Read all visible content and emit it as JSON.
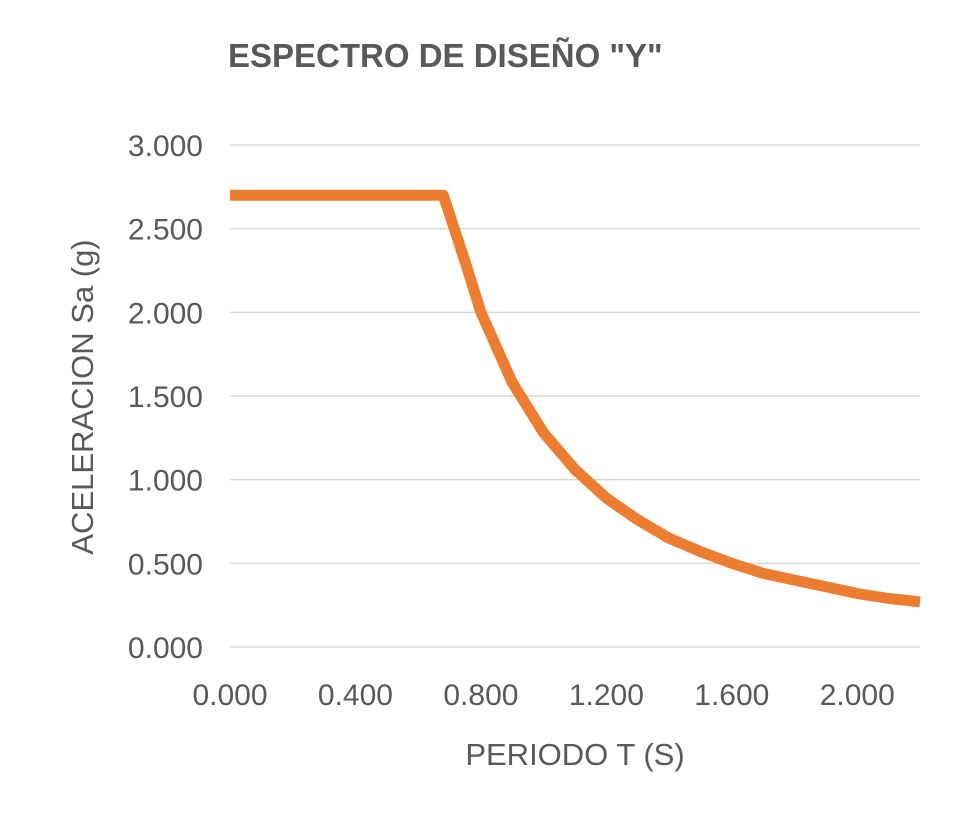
{
  "chart_data": {
    "type": "line",
    "title": "ESPECTRO DE DISEÑO \"Y\"",
    "xlabel": "PERIODO T (S)",
    "ylabel": "ACELERACION Sa (g)",
    "xlim": [
      0,
      2.2
    ],
    "ylim": [
      0,
      3.0
    ],
    "x_ticks": [
      "0.000",
      "0.400",
      "0.800",
      "1.200",
      "1.600",
      "2.000"
    ],
    "x_tick_values": [
      0,
      0.4,
      0.8,
      1.2,
      1.6,
      2.0
    ],
    "y_ticks": [
      "0.000",
      "0.500",
      "1.000",
      "1.500",
      "2.000",
      "2.500",
      "3.000"
    ],
    "y_tick_values": [
      0,
      0.5,
      1.0,
      1.5,
      2.0,
      2.5,
      3.0
    ],
    "grid": true,
    "legend": "none",
    "series": [
      {
        "color": "#ed7d31",
        "x": [
          0.0,
          0.1,
          0.2,
          0.3,
          0.4,
          0.5,
          0.6,
          0.68,
          0.75,
          0.8,
          0.9,
          1.0,
          1.1,
          1.2,
          1.3,
          1.4,
          1.5,
          1.6,
          1.7,
          1.8,
          1.9,
          2.0,
          2.1,
          2.2
        ],
        "y": [
          2.7,
          2.7,
          2.7,
          2.7,
          2.7,
          2.7,
          2.7,
          2.7,
          2.3,
          2.0,
          1.58,
          1.28,
          1.06,
          0.89,
          0.76,
          0.65,
          0.57,
          0.5,
          0.44,
          0.4,
          0.36,
          0.32,
          0.29,
          0.27
        ]
      }
    ]
  }
}
